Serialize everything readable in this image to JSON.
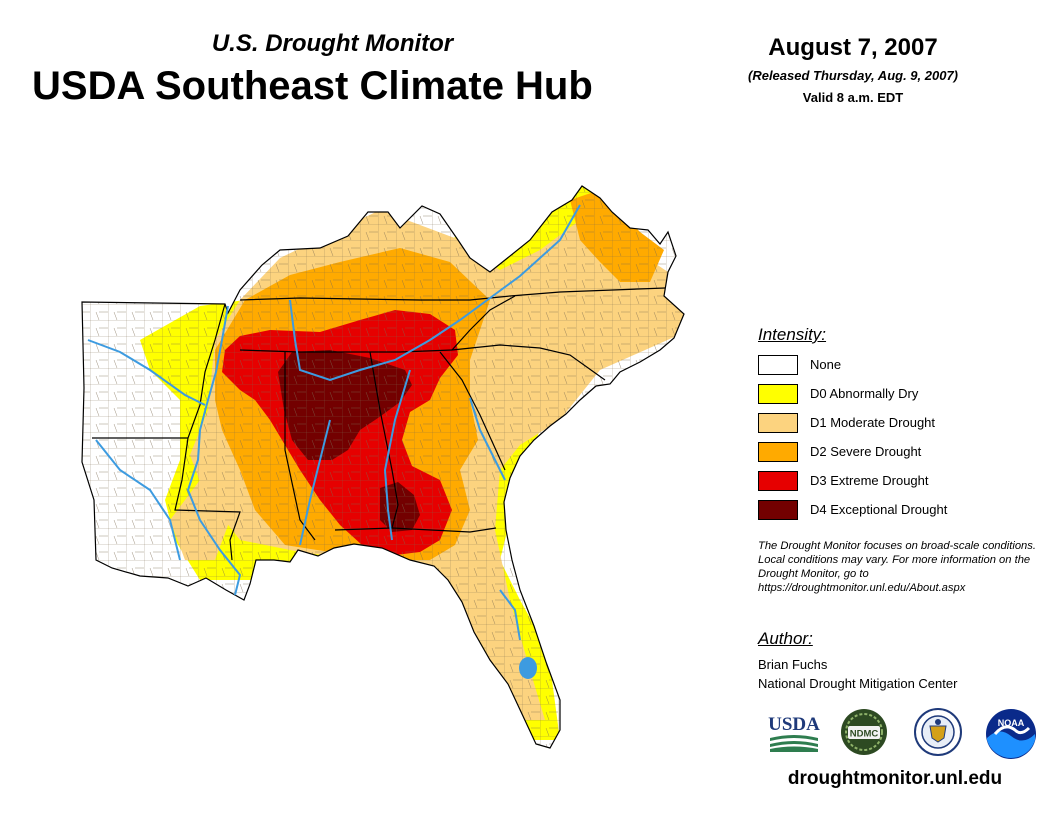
{
  "header": {
    "subtitle": "U.S. Drought Monitor",
    "title": "USDA Southeast Climate Hub",
    "date": "August 7, 2007",
    "released": "(Released Thursday, Aug. 9, 2007)",
    "valid": "Valid 8 a.m. EDT"
  },
  "legend": {
    "title": "Intensity:",
    "items": [
      {
        "label": "None",
        "color": "#ffffff"
      },
      {
        "label": "D0 Abnormally Dry",
        "color": "#ffff00"
      },
      {
        "label": "D1 Moderate Drought",
        "color": "#fcd37f"
      },
      {
        "label": "D2 Severe Drought",
        "color": "#ffaa00"
      },
      {
        "label": "D3 Extreme Drought",
        "color": "#e60000"
      },
      {
        "label": "D4 Exceptional Drought",
        "color": "#730000"
      }
    ]
  },
  "note": "The Drought Monitor focuses on broad-scale conditions. Local conditions may vary. For more information on the Drought Monitor, go to https://droughtmonitor.unl.edu/About.aspx",
  "author": {
    "title": "Author:",
    "name": "Brian Fuchs",
    "org": "National Drought Mitigation Center"
  },
  "logos": {
    "usda": "USDA",
    "ndmc": "NDMC",
    "noaa": "NOAA"
  },
  "footer": {
    "url": "droughtmonitor.unl.edu"
  },
  "colors": {
    "water": "#3d9be0",
    "county_lines": "#7a6a50",
    "state_lines": "#000000"
  }
}
